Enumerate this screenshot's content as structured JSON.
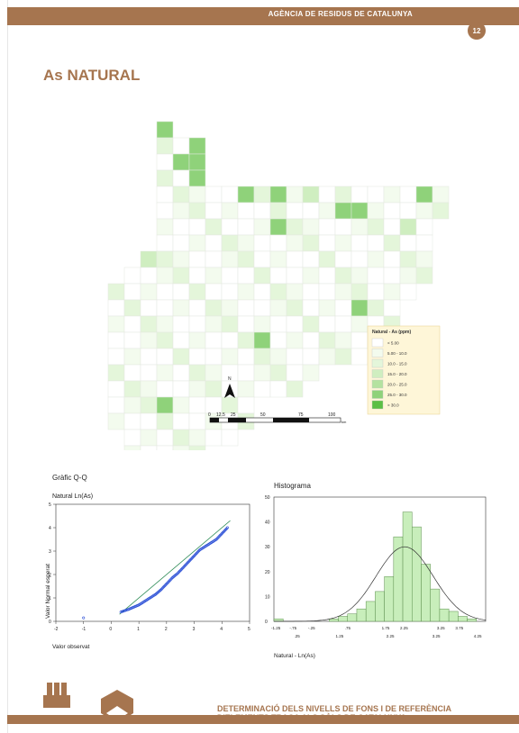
{
  "header": {
    "title": "AGÈNCIA DE RESIDUS DE CATALUNYA",
    "page_number": "12"
  },
  "heading": "As NATURAL",
  "map": {
    "legend_title": "Natural - As (ppm)",
    "legend_items": [
      {
        "label": "< 5.00",
        "color": "#ffffff"
      },
      {
        "label": "5.00 - 10.0",
        "color": "#f3fbee"
      },
      {
        "label": "10.0 - 15.0",
        "color": "#e4f6da"
      },
      {
        "label": "15.0 - 20.0",
        "color": "#cfeec0"
      },
      {
        "label": "20.0 - 25.0",
        "color": "#b4e2a0"
      },
      {
        "label": "25.0 - 30.0",
        "color": "#8fd27a"
      },
      {
        "label": "> 30.0",
        "color": "#5bbf45"
      }
    ],
    "scale_labels": [
      "0",
      "12.5",
      "25",
      "50",
      "75",
      "100"
    ],
    "scale_unit": "km",
    "north_label": "N"
  },
  "qq": {
    "section_title": "Gràfic Q-Q",
    "chart_title": "Natural Ln(As)",
    "ylabel": "Valor Normal esperat",
    "xlabel": "Valor observat",
    "xticks": [
      "-2",
      "-1",
      "0",
      "1",
      "2",
      "3",
      "4",
      "5"
    ],
    "yticks": [
      "0",
      "1",
      "2",
      "3",
      "4",
      "5"
    ]
  },
  "histogram": {
    "title": "Histograma",
    "xlabel": "Natural - Ln(As)",
    "yticks": [
      "0",
      "10",
      "20",
      "30",
      "40",
      "50"
    ],
    "xticks_top": [
      "-1.25",
      "-.75",
      "-.25",
      ".75",
      "1.75",
      "2.25",
      "3.25",
      "3.75"
    ],
    "xticks_bottom": [
      ".25",
      "1.25",
      "2.25",
      "3.25",
      "4.25"
    ]
  },
  "chart_data": [
    {
      "type": "scatter",
      "title": "Natural Ln(As)",
      "xlabel": "Valor observat",
      "ylabel": "Valor Normal esperat",
      "xlim": [
        -2,
        5
      ],
      "ylim": [
        0,
        5
      ],
      "series": [
        {
          "values": [
            [
              -1.0,
              0.15
            ],
            [
              0.35,
              0.4
            ],
            [
              0.6,
              0.5
            ],
            [
              0.8,
              0.6
            ],
            [
              1.0,
              0.7
            ],
            [
              1.2,
              0.85
            ],
            [
              1.4,
              1.0
            ],
            [
              1.6,
              1.15
            ],
            [
              1.8,
              1.35
            ],
            [
              2.0,
              1.6
            ],
            [
              2.2,
              1.85
            ],
            [
              2.4,
              2.05
            ],
            [
              2.6,
              2.3
            ],
            [
              2.8,
              2.55
            ],
            [
              3.0,
              2.8
            ],
            [
              3.2,
              3.05
            ],
            [
              3.4,
              3.2
            ],
            [
              3.6,
              3.35
            ],
            [
              3.8,
              3.5
            ],
            [
              4.0,
              3.75
            ],
            [
              4.2,
              4.0
            ]
          ]
        }
      ]
    },
    {
      "type": "bar",
      "title": "Histograma",
      "xlabel": "Natural - Ln(As)",
      "ylim": [
        0,
        50
      ],
      "categories": [
        "-1.25",
        "-1.0",
        "-0.75",
        "-0.5",
        "-0.25",
        "0.0",
        "0.25",
        "0.5",
        "0.75",
        "1.0",
        "1.25",
        "1.5",
        "1.75",
        "2.0",
        "2.25",
        "2.5",
        "2.75",
        "3.0",
        "3.25",
        "3.5",
        "3.75",
        "4.0",
        "4.25"
      ],
      "values": [
        1,
        0,
        0,
        0,
        0,
        0,
        1,
        2,
        3,
        5,
        8,
        12,
        18,
        34,
        44,
        38,
        23,
        13,
        5,
        4,
        2,
        1,
        0
      ]
    }
  ]
}
